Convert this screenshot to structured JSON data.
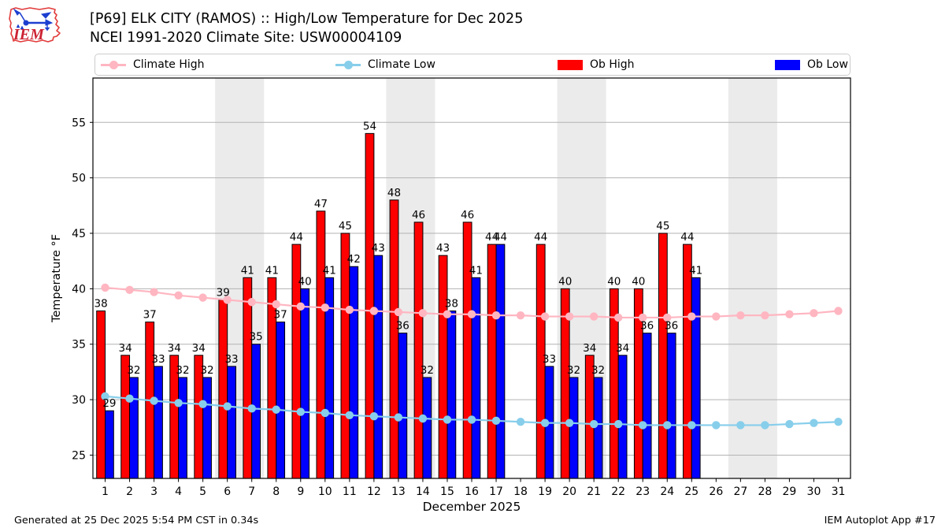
{
  "header": {
    "title_line1": "[P69] ELK CITY (RAMOS) :: High/Low Temperature for Dec 2025",
    "title_line2": "NCEI 1991-2020 Climate Site: USW00004109",
    "logo_text": "IEM"
  },
  "legend": {
    "items": [
      {
        "label": "Climate High",
        "type": "line",
        "color": "#ffb6c1"
      },
      {
        "label": "Climate Low",
        "type": "line",
        "color": "#87ceeb"
      },
      {
        "label": "Ob High",
        "type": "patch",
        "color": "#ff0000"
      },
      {
        "label": "Ob Low",
        "type": "patch",
        "color": "#0000ff"
      }
    ]
  },
  "chart_data": {
    "type": "bar",
    "title": "",
    "xlabel": "December 2025",
    "ylabel": "Temperature °F",
    "x": [
      1,
      2,
      3,
      4,
      5,
      6,
      7,
      8,
      9,
      10,
      11,
      12,
      13,
      14,
      15,
      16,
      17,
      18,
      19,
      20,
      21,
      22,
      23,
      24,
      25,
      26,
      27,
      28,
      29,
      30,
      31
    ],
    "xticks": [
      1,
      2,
      3,
      4,
      5,
      6,
      7,
      8,
      9,
      10,
      11,
      12,
      13,
      14,
      15,
      16,
      17,
      18,
      19,
      20,
      21,
      22,
      23,
      24,
      25,
      26,
      27,
      28,
      29,
      30,
      31
    ],
    "yticks": [
      25,
      30,
      35,
      40,
      45,
      50,
      55
    ],
    "ylim": [
      22.9,
      59.0
    ],
    "grid": "horizontal",
    "band_color": "#ebebeb",
    "grid_color": "#b3b3b3",
    "weekend_bands": [
      [
        5.5,
        7.5
      ],
      [
        12.5,
        14.5
      ],
      [
        19.5,
        21.5
      ],
      [
        26.5,
        28.5
      ]
    ],
    "series": [
      {
        "name": "Ob High",
        "type": "bar",
        "side": "left",
        "color": "#ff0000",
        "labels": true,
        "values": [
          38,
          34,
          37,
          34,
          34,
          39,
          41,
          41,
          44,
          47,
          45,
          54,
          48,
          46,
          43,
          46,
          44,
          null,
          44,
          40,
          34,
          40,
          40,
          45,
          44,
          null,
          null,
          null,
          null,
          null,
          null
        ]
      },
      {
        "name": "Ob Low",
        "type": "bar",
        "side": "right",
        "color": "#0000ff",
        "labels": true,
        "values": [
          29,
          32,
          33,
          32,
          32,
          33,
          35,
          37,
          40,
          41,
          42,
          43,
          36,
          32,
          38,
          41,
          44,
          null,
          33,
          32,
          32,
          34,
          36,
          36,
          41,
          null,
          null,
          null,
          null,
          null,
          null
        ]
      },
      {
        "name": "Climate High",
        "type": "line",
        "marker": "circle",
        "color": "#ffb6c1",
        "values": [
          40.1,
          39.9,
          39.7,
          39.4,
          39.2,
          39.0,
          38.8,
          38.6,
          38.4,
          38.3,
          38.1,
          38.0,
          37.9,
          37.8,
          37.7,
          37.7,
          37.6,
          37.6,
          37.5,
          37.5,
          37.5,
          37.4,
          37.4,
          37.4,
          37.5,
          37.5,
          37.6,
          37.6,
          37.7,
          37.8,
          38.0
        ]
      },
      {
        "name": "Climate Low",
        "type": "line",
        "marker": "circle",
        "color": "#87ceeb",
        "values": [
          30.3,
          30.1,
          29.9,
          29.7,
          29.6,
          29.4,
          29.2,
          29.1,
          28.9,
          28.8,
          28.6,
          28.5,
          28.4,
          28.3,
          28.2,
          28.2,
          28.1,
          28.0,
          27.9,
          27.9,
          27.8,
          27.8,
          27.7,
          27.7,
          27.7,
          27.7,
          27.7,
          27.7,
          27.8,
          27.9,
          28.0
        ]
      }
    ]
  },
  "footer": {
    "left": "Generated at 25 Dec 2025 5:54 PM CST in 0.34s",
    "right": "IEM Autoplot App #17"
  }
}
